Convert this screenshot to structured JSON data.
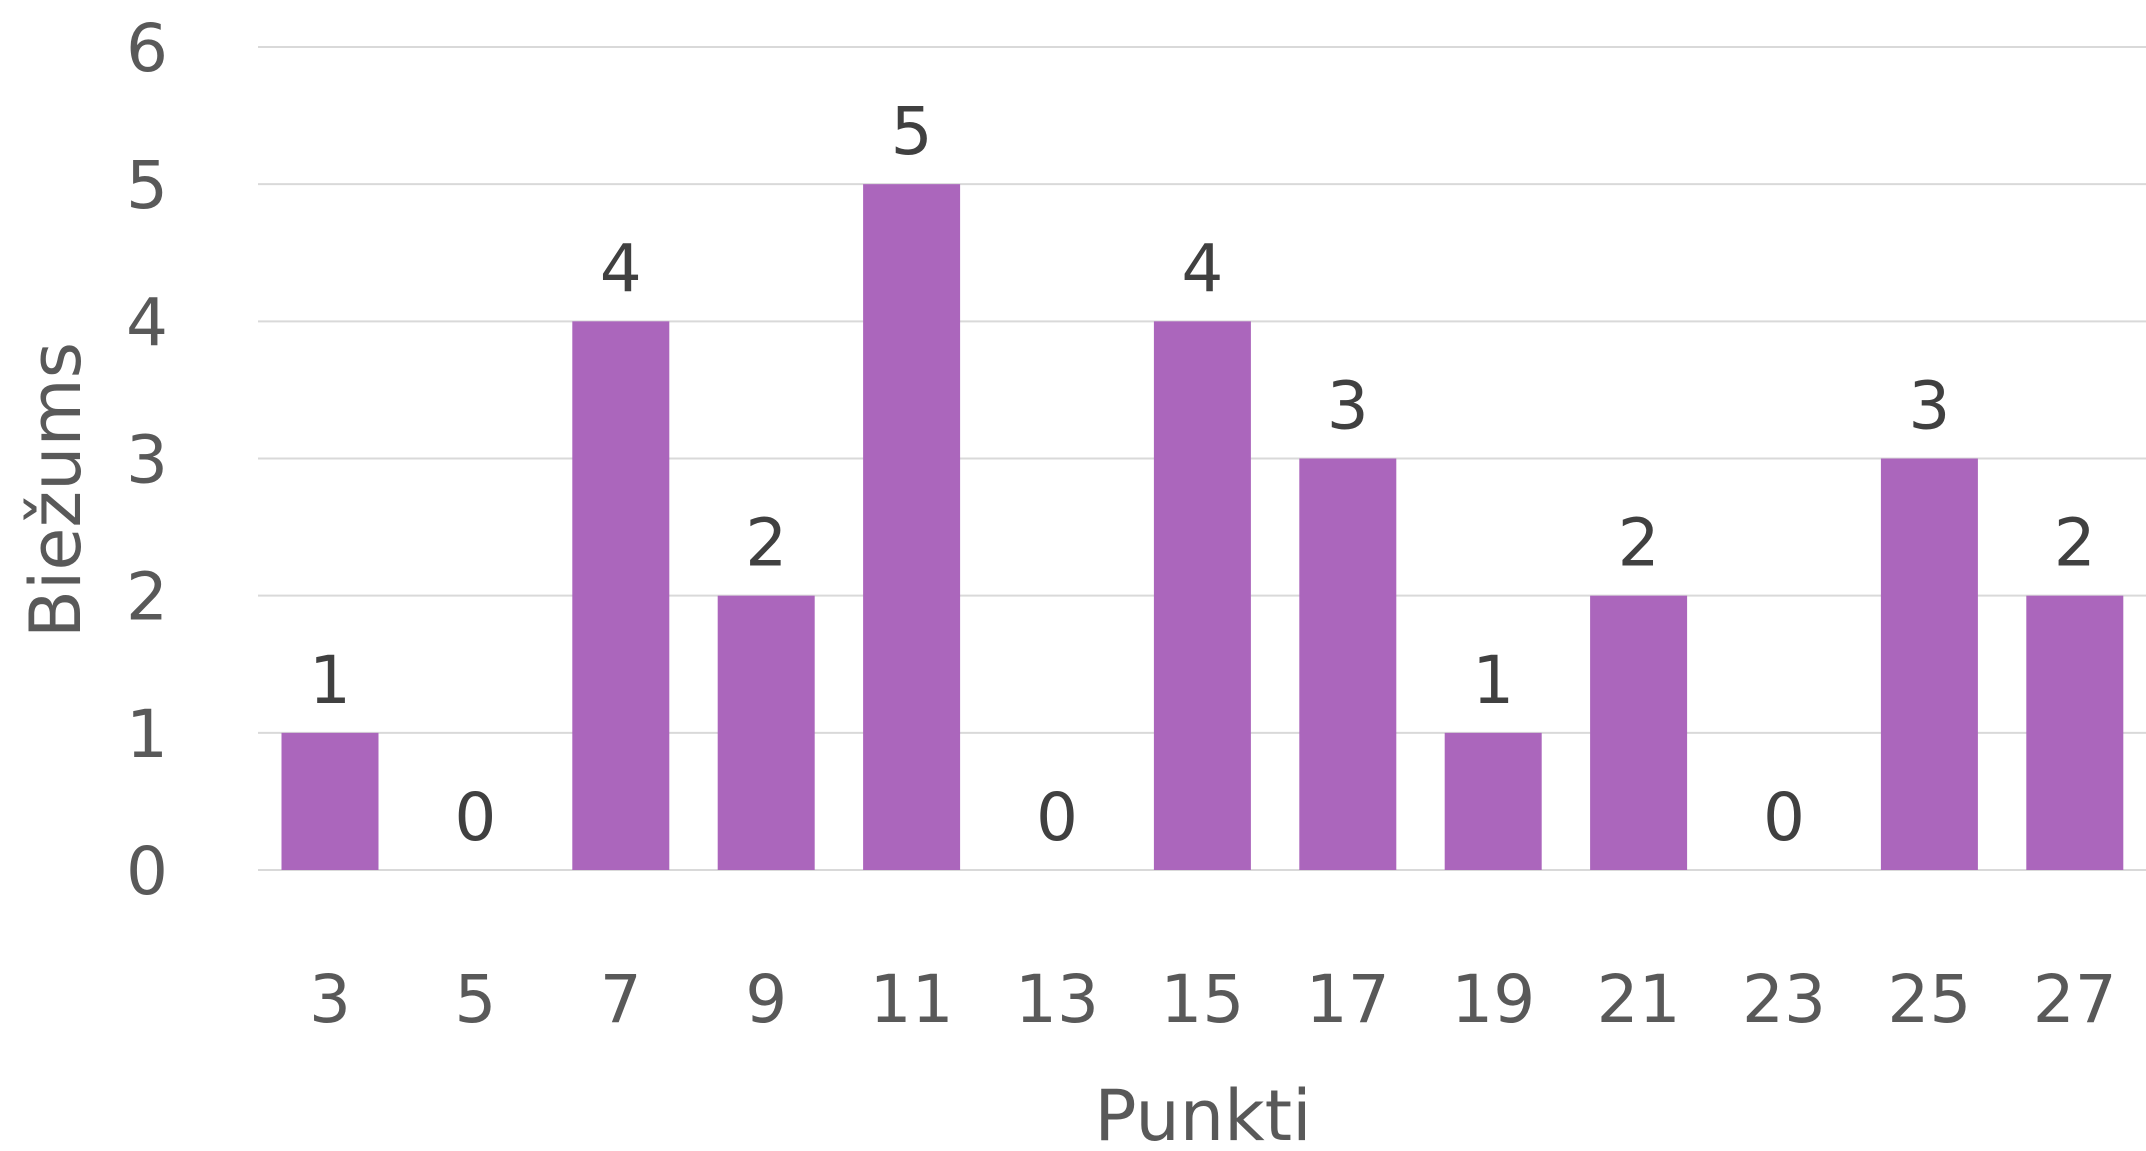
{
  "chart_data": {
    "type": "bar",
    "title": "",
    "xlabel": "Punkti",
    "ylabel": "Biežums",
    "categories": [
      "3",
      "5",
      "7",
      "9",
      "11",
      "13",
      "15",
      "17",
      "19",
      "21",
      "23",
      "25",
      "27"
    ],
    "values": [
      1,
      0,
      4,
      2,
      5,
      0,
      4,
      3,
      1,
      2,
      0,
      3,
      2
    ],
    "ylim": [
      0,
      6
    ],
    "yticks": [
      "0",
      "1",
      "2",
      "3",
      "4",
      "5",
      "6"
    ],
    "grid": true,
    "legend": "none",
    "data_labels": true,
    "colors": {
      "bar": "#AB66BC",
      "grid": "#D9D9D9",
      "tick_text": "#595959",
      "data_label_text": "#404040"
    }
  }
}
